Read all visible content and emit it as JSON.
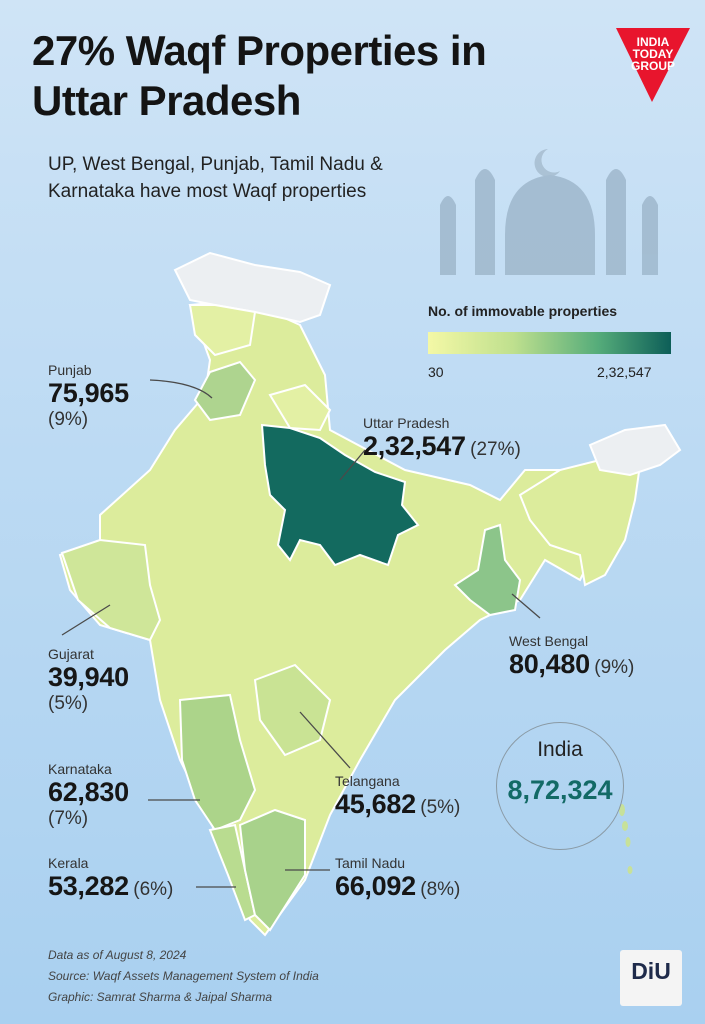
{
  "title": "27% Waqf Properties in Uttar Pradesh",
  "subtitle": "UP, West Bengal, Punjab, Tamil Nadu & Karnataka have most Waqf properties",
  "brand": {
    "line1": "INDIA",
    "line2": "TODAY",
    "line3": "GROUP",
    "color": "#e8152d",
    "diu_logo": "DiU"
  },
  "legend": {
    "title": "No. of immovable properties",
    "min": "30",
    "max": "2,32,547",
    "colors": [
      "#f4f8a6",
      "#bfe08e",
      "#55ac7a",
      "#0d5e58"
    ]
  },
  "states": [
    {
      "name": "Punjab",
      "value": "75,965",
      "pct": "(9%)"
    },
    {
      "name": "Uttar Pradesh",
      "value": "2,32,547",
      "pct": "(27%)"
    },
    {
      "name": "Gujarat",
      "value": "39,940",
      "pct": "(5%)"
    },
    {
      "name": "West Bengal",
      "value": "80,480",
      "pct": "(9%)"
    },
    {
      "name": "Karnataka",
      "value": "62,830",
      "pct": "(7%)"
    },
    {
      "name": "Telangana",
      "value": "45,682",
      "pct": "(5%)"
    },
    {
      "name": "Kerala",
      "value": "53,282",
      "pct": "(6%)"
    },
    {
      "name": "Tamil Nadu",
      "value": "66,092",
      "pct": "(8%)"
    }
  ],
  "total": {
    "name": "India",
    "value": "8,72,324"
  },
  "footer": {
    "date": "Data as of August 8, 2024",
    "source": "Source: Waqf Assets Management System of India",
    "graphic": "Graphic: Samrat Sharma & Jaipal Sharma"
  }
}
